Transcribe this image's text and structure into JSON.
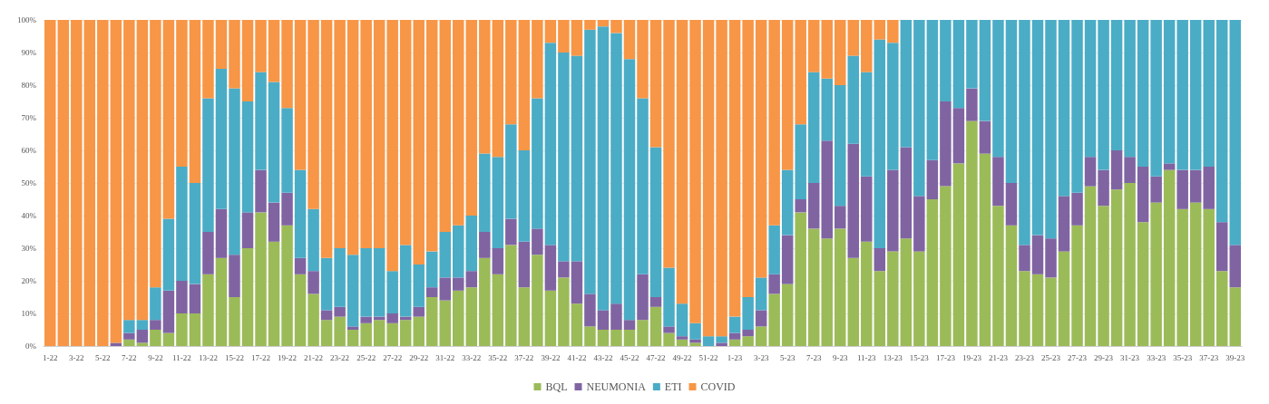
{
  "chart_data": {
    "type": "bar",
    "stacked": true,
    "legend": "bottom",
    "grid": "y",
    "categories": [
      "1-22",
      null,
      "3-22",
      null,
      "5-22",
      null,
      "7-22",
      null,
      "9-22",
      null,
      "11-22",
      null,
      "13-22",
      null,
      "15-22",
      null,
      "17-22",
      null,
      "19-22",
      null,
      "21-22",
      null,
      "23-22",
      null,
      "25-22",
      null,
      "27-22",
      null,
      "29-22",
      null,
      "31-22",
      null,
      "33-22",
      null,
      "35-22",
      null,
      "37-22",
      null,
      "39-22",
      null,
      "41-22",
      null,
      "43-22",
      null,
      "45-22",
      null,
      "47-22",
      null,
      "49-22",
      null,
      "51-22",
      null,
      "1-23",
      null,
      "3-23",
      null,
      "5-23",
      null,
      "7-23",
      null,
      "9-23",
      null,
      "11-23",
      null,
      "13-23",
      null,
      "15-23",
      null,
      "17-23",
      null,
      "19-23",
      null,
      "21-23",
      null,
      "23-23",
      null,
      "25-23",
      null,
      "27-23",
      null,
      "29-23",
      null,
      "31-23",
      null,
      "33-23",
      null,
      "35-23",
      null,
      "37-23",
      null,
      "39-23"
    ],
    "ylim": [
      0,
      100
    ],
    "yticks": [
      {
        "value": 0,
        "label": "0%"
      },
      {
        "value": 10,
        "label": "10%"
      },
      {
        "value": 20,
        "label": "20%"
      },
      {
        "value": 30,
        "label": "30%"
      },
      {
        "value": 40,
        "label": "40%"
      },
      {
        "value": 50,
        "label": "50%"
      },
      {
        "value": 60,
        "label": "60%"
      },
      {
        "value": 70,
        "label": "70%"
      },
      {
        "value": 80,
        "label": "80%"
      },
      {
        "value": 90,
        "label": "90%"
      },
      {
        "value": 100,
        "label": "100%"
      }
    ],
    "series": [
      {
        "name": "BQL",
        "color": "#9bbb59",
        "values": [
          0,
          0,
          0,
          0,
          0,
          0,
          2,
          1,
          5,
          4,
          10,
          10,
          22,
          27,
          15,
          30,
          41,
          32,
          37,
          22,
          16,
          8,
          9,
          5,
          7,
          8,
          7,
          8,
          9,
          15,
          14,
          17,
          18,
          27,
          22,
          31,
          18,
          28,
          17,
          21,
          13,
          6,
          5,
          5,
          5,
          8,
          12,
          4,
          2,
          1,
          0,
          0,
          2,
          3,
          6,
          16,
          19,
          41,
          36,
          33,
          36,
          27,
          32,
          23,
          29,
          33,
          29,
          45,
          49,
          56,
          69,
          59,
          43,
          37,
          23,
          22,
          21,
          29,
          37,
          49,
          43,
          48,
          50,
          38,
          44,
          54,
          42,
          44,
          42,
          23,
          18
        ]
      },
      {
        "name": "NEUMONIA",
        "color": "#8064a2",
        "values": [
          0,
          0,
          0,
          0,
          0,
          1,
          2,
          4,
          3,
          13,
          10,
          9,
          13,
          15,
          13,
          11,
          13,
          12,
          10,
          5,
          7,
          3,
          3,
          1,
          2,
          1,
          3,
          1,
          3,
          3,
          7,
          4,
          5,
          8,
          8,
          8,
          14,
          8,
          14,
          5,
          13,
          10,
          6,
          8,
          3,
          14,
          3,
          2,
          1,
          1,
          0,
          1,
          2,
          2,
          5,
          6,
          15,
          4,
          14,
          30,
          7,
          35,
          20,
          7,
          25,
          28,
          17,
          12,
          26,
          17,
          10,
          10,
          15,
          13,
          8,
          12,
          12,
          17,
          10,
          9,
          11,
          12,
          8,
          17,
          8,
          2,
          12,
          10,
          13,
          15,
          13
        ]
      },
      {
        "name": "ETI",
        "color": "#4bacc6",
        "values": [
          0,
          0,
          0,
          0,
          0,
          0,
          4,
          3,
          10,
          22,
          35,
          31,
          41,
          43,
          51,
          34,
          30,
          37,
          26,
          27,
          19,
          16,
          18,
          22,
          21,
          21,
          13,
          22,
          13,
          11,
          14,
          16,
          17,
          24,
          28,
          29,
          28,
          40,
          62,
          64,
          63,
          81,
          87,
          83,
          80,
          54,
          46,
          18,
          10,
          5,
          3,
          2,
          5,
          10,
          10,
          15,
          20,
          23,
          34,
          19,
          37,
          27,
          32,
          64,
          39,
          39,
          54,
          43,
          25,
          27,
          21,
          31,
          42,
          50,
          69,
          66,
          67,
          54,
          53,
          42,
          46,
          40,
          42,
          45,
          48,
          44,
          46,
          46,
          45,
          62,
          69
        ]
      },
      {
        "name": "COVID",
        "color": "#f79646",
        "values": [
          100,
          100,
          100,
          100,
          100,
          99,
          92,
          92,
          82,
          61,
          45,
          50,
          24,
          15,
          21,
          25,
          16,
          19,
          27,
          46,
          58,
          73,
          70,
          72,
          70,
          70,
          77,
          69,
          75,
          71,
          65,
          63,
          60,
          41,
          42,
          32,
          40,
          24,
          7,
          10,
          11,
          3,
          2,
          4,
          12,
          24,
          39,
          76,
          87,
          93,
          97,
          97,
          91,
          85,
          79,
          63,
          46,
          32,
          16,
          18,
          20,
          11,
          16,
          6,
          7,
          0,
          0,
          0,
          0,
          0,
          0,
          0,
          0,
          0,
          0,
          0,
          0,
          0,
          0,
          0,
          0,
          0,
          0,
          0,
          0,
          0,
          0,
          0,
          0,
          0,
          0
        ]
      }
    ]
  }
}
